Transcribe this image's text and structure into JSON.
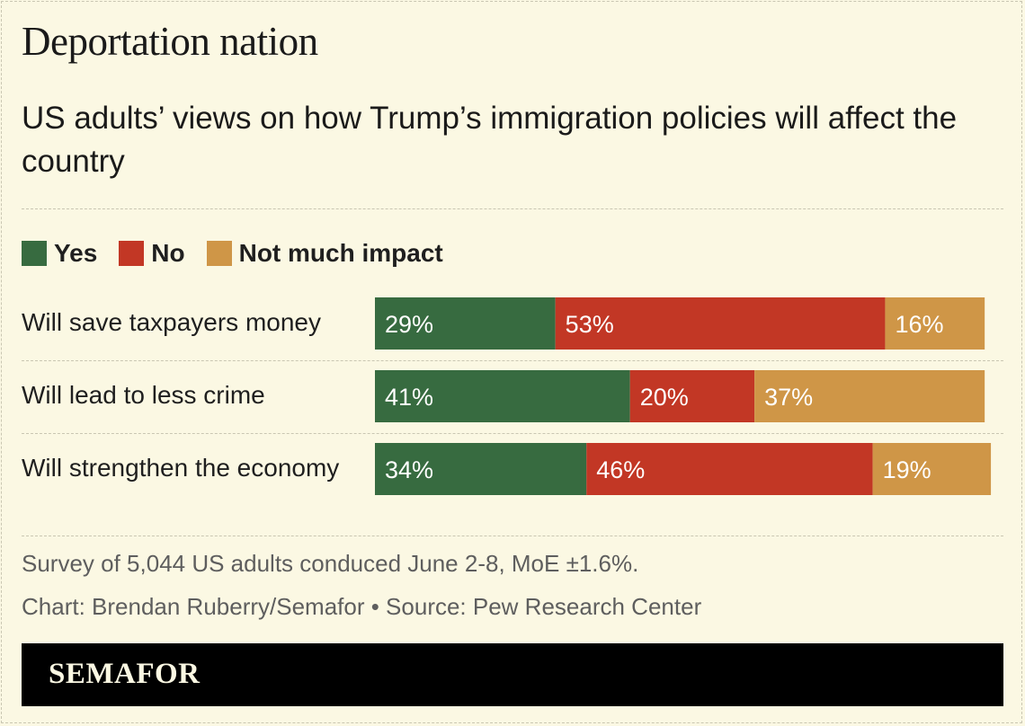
{
  "header": {
    "title": "Deportation nation",
    "subtitle": "US adults’ views on how Trump’s immigration policies will affect the country"
  },
  "legend": [
    {
      "label": "Yes",
      "color": "#376b40"
    },
    {
      "label": "No",
      "color": "#c23725"
    },
    {
      "label": "Not much impact",
      "color": "#cf9647"
    }
  ],
  "chart_data": {
    "type": "bar",
    "orientation": "horizontal",
    "stacked": true,
    "categories": [
      "Will save taxpayers money",
      "Will lead to less crime",
      "Will strengthen the economy"
    ],
    "series": [
      {
        "name": "Yes",
        "color": "#376b40",
        "values": [
          29,
          41,
          34
        ]
      },
      {
        "name": "No",
        "color": "#c23725",
        "values": [
          53,
          20,
          46
        ]
      },
      {
        "name": "Not much impact",
        "color": "#cf9647",
        "values": [
          16,
          37,
          19
        ]
      }
    ],
    "value_suffix": "%",
    "title": "Deportation nation",
    "subtitle": "US adults’ views on how Trump’s immigration policies will affect the country"
  },
  "footer": {
    "note": "Survey of 5,044 US adults conduced June 2-8, MoE ±1.6%.",
    "credit": "Chart: Brendan Ruberry/Semafor • Source: Pew Research Center",
    "brand": "SEMAFOR"
  }
}
